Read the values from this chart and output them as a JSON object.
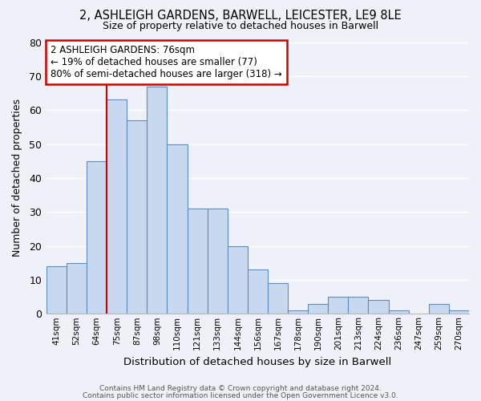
{
  "title": "2, ASHLEIGH GARDENS, BARWELL, LEICESTER, LE9 8LE",
  "subtitle": "Size of property relative to detached houses in Barwell",
  "xlabel": "Distribution of detached houses by size in Barwell",
  "ylabel": "Number of detached properties",
  "bar_color": "#c8d8ee",
  "bar_edge_color": "#5b8dc0",
  "background_color": "#eef2f8",
  "grid_color": "#ffffff",
  "categories": [
    "41sqm",
    "52sqm",
    "64sqm",
    "75sqm",
    "87sqm",
    "98sqm",
    "110sqm",
    "121sqm",
    "133sqm",
    "144sqm",
    "156sqm",
    "167sqm",
    "178sqm",
    "190sqm",
    "201sqm",
    "213sqm",
    "224sqm",
    "236sqm",
    "247sqm",
    "259sqm",
    "270sqm"
  ],
  "values": [
    14,
    15,
    45,
    63,
    57,
    67,
    50,
    31,
    31,
    20,
    13,
    9,
    1,
    3,
    5,
    5,
    4,
    1,
    0,
    3,
    1
  ],
  "vline_x_index": 3,
  "vline_color": "#cc0000",
  "annotation_line1": "2 ASHLEIGH GARDENS: 76sqm",
  "annotation_line2": "← 19% of detached houses are smaller (77)",
  "annotation_line3": "80% of semi-detached houses are larger (318) →",
  "annotation_box_color": "#ffffff",
  "annotation_box_edge_color": "#cc0000",
  "ylim": [
    0,
    80
  ],
  "yticks": [
    0,
    10,
    20,
    30,
    40,
    50,
    60,
    70,
    80
  ],
  "footer1": "Contains HM Land Registry data © Crown copyright and database right 2024.",
  "footer2": "Contains public sector information licensed under the Open Government Licence v3.0."
}
